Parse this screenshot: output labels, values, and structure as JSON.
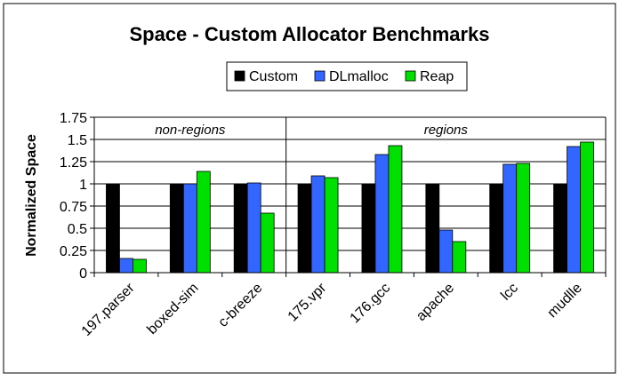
{
  "chart_data": {
    "type": "bar",
    "title": "Space - Custom Allocator Benchmarks",
    "xlabel": "",
    "ylabel": "Normalized Space",
    "ylim": [
      0,
      1.75
    ],
    "yticks": [
      "0",
      "0.25",
      "0.5",
      "0.75",
      "1",
      "1.25",
      "1.5",
      "1.75"
    ],
    "grid": true,
    "legend_position": "top",
    "categories": [
      "197.parser",
      "boxed-sim",
      "c-breeze",
      "175.vpr",
      "176.gcc",
      "apache",
      "lcc",
      "mudlle"
    ],
    "groups": [
      {
        "label": "non-regions",
        "start": 0,
        "end": 2
      },
      {
        "label": "regions",
        "start": 3,
        "end": 7
      }
    ],
    "series": [
      {
        "name": "Custom",
        "color": "#000000",
        "values": [
          1.0,
          1.0,
          1.0,
          1.0,
          1.0,
          1.0,
          1.0,
          1.0
        ]
      },
      {
        "name": "DLmalloc",
        "color": "#3366ff",
        "values": [
          0.16,
          1.0,
          1.01,
          1.09,
          1.33,
          0.48,
          1.22,
          1.42
        ]
      },
      {
        "name": "Reap",
        "color": "#00e000",
        "values": [
          0.15,
          1.14,
          0.67,
          1.07,
          1.43,
          0.35,
          1.23,
          1.47
        ]
      }
    ]
  }
}
